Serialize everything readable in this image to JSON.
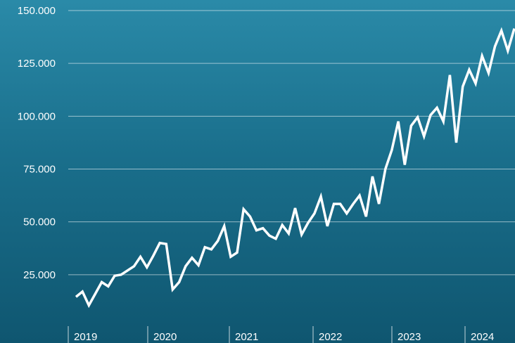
{
  "chart_data": {
    "type": "line",
    "title": "",
    "xlabel": "",
    "ylabel": "",
    "ylim": [
      0,
      150000
    ],
    "yticks": [
      25000,
      50000,
      75000,
      100000,
      125000,
      150000
    ],
    "ytick_labels": [
      "25.000",
      "50.000",
      "75.000",
      "100.000",
      "125.000",
      "150.000"
    ],
    "x_year_labels": [
      "2019",
      "2020",
      "2021",
      "2022",
      "2023",
      "2024"
    ],
    "grid": true,
    "line_color": "#ffffff",
    "series": [
      {
        "values": [
          14500,
          17000,
          10500,
          16000,
          21500,
          19500,
          24500,
          25000,
          27000,
          29000,
          33500,
          28500,
          34000,
          40000,
          39500,
          18000,
          21500,
          29000,
          33000,
          29500,
          38000,
          37000,
          41000,
          48000,
          33500,
          35500,
          56000,
          52500,
          46000,
          47000,
          43500,
          42000,
          48500,
          44500,
          56500,
          44000,
          49500,
          54000,
          62000,
          48000,
          58500,
          58500,
          54000,
          58500,
          62500,
          52500,
          71500,
          58500,
          75000,
          84000,
          97500,
          77000,
          95500,
          99500,
          90500,
          100500,
          104000,
          97500,
          119500,
          87500,
          114000,
          122000,
          115500,
          128500,
          120500,
          133000,
          140500,
          131000,
          141500
        ]
      }
    ]
  }
}
